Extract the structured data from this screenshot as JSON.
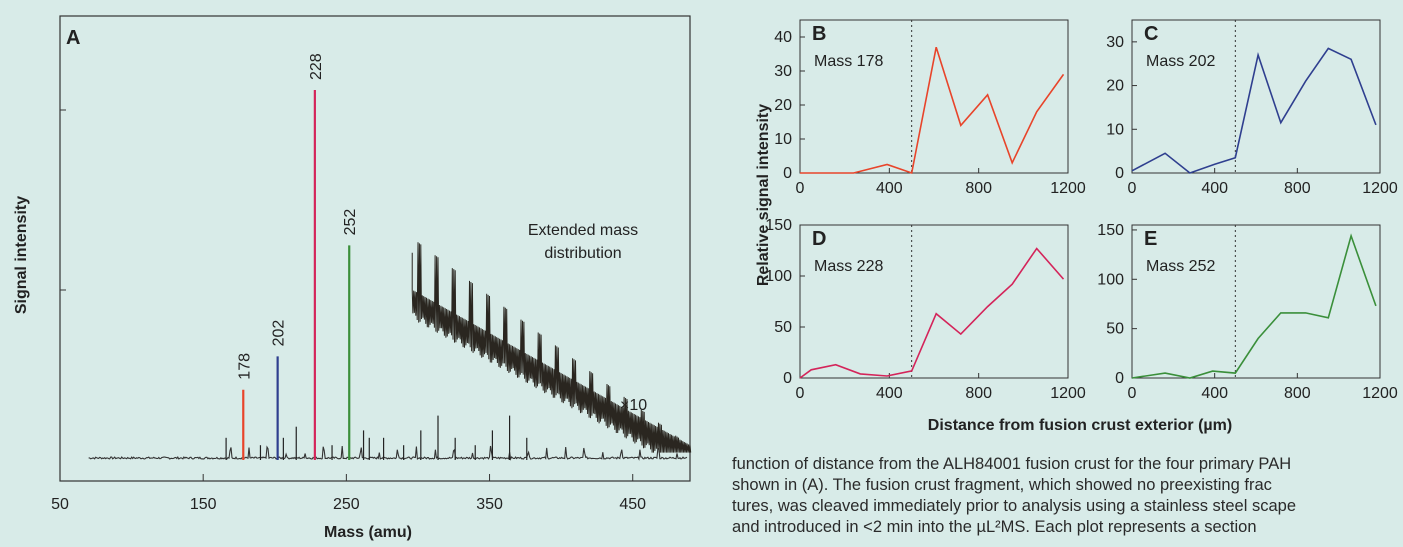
{
  "panel_a": {
    "letter": "A",
    "xlabel": "Mass (amu)",
    "ylabel": "Signal intensity",
    "extended_label_line1": "Extended mass",
    "extended_label_line2": "distribution",
    "times_label": "×10"
  },
  "shared": {
    "ylabel": "Relative signal intensity",
    "xlabel": "Distance from fusion crust exterior (µm)"
  },
  "caption_lines": [
    "function of distance from the ALH84001 fusion crust for the four primary PAH",
    "shown in (A). The fusion crust fragment, which showed no preexisting frac",
    "tures, was cleaved immediately prior to analysis using a stainless steel scape",
    "and introduced in <2 min into the µL²MS. Each plot represents a section"
  ],
  "chart_data": [
    {
      "type": "line",
      "panel": "A",
      "xlabel": "Mass (amu)",
      "ylabel": "Signal intensity",
      "xlim": [
        50,
        490
      ],
      "xticks": [
        50,
        150,
        250,
        350,
        450
      ],
      "peaks": [
        {
          "mass": 178,
          "label": "178",
          "height": 0.19,
          "color": "#e8442a"
        },
        {
          "mass": 202,
          "label": "202",
          "height": 0.28,
          "color": "#2f3f8f"
        },
        {
          "mass": 228,
          "label": "228",
          "height": 1.0,
          "color": "#d4245a"
        },
        {
          "mass": 252,
          "label": "252",
          "height": 0.58,
          "color": "#3a8f3a"
        }
      ],
      "annotations": [
        "Extended mass distribution",
        "×10"
      ]
    },
    {
      "type": "line",
      "panel": "B",
      "label": "Mass 178",
      "color": "#e8442a",
      "x": [
        0,
        120,
        240,
        390,
        500,
        610,
        720,
        840,
        950,
        1060,
        1180
      ],
      "y": [
        0,
        0,
        0,
        2.5,
        0,
        37,
        14,
        23,
        3,
        18,
        29
      ],
      "ylim": [
        0,
        45
      ],
      "yticks": [
        0,
        10,
        20,
        30,
        40
      ],
      "xlim": [
        0,
        1200
      ],
      "xticks": [
        0,
        400,
        800,
        1200
      ]
    },
    {
      "type": "line",
      "panel": "C",
      "label": "Mass 202",
      "color": "#2f3f8f",
      "x": [
        0,
        160,
        280,
        400,
        500,
        610,
        720,
        840,
        950,
        1060,
        1180
      ],
      "y": [
        0.5,
        4.5,
        0,
        2,
        3.5,
        27,
        11.5,
        21,
        28.5,
        26,
        11
      ],
      "ylim": [
        0,
        35
      ],
      "yticks": [
        0,
        10,
        20,
        30
      ],
      "xlim": [
        0,
        1200
      ],
      "xticks": [
        0,
        400,
        800,
        1200
      ]
    },
    {
      "type": "line",
      "panel": "D",
      "label": "Mass 228",
      "color": "#d4245a",
      "x": [
        0,
        50,
        160,
        270,
        390,
        500,
        610,
        720,
        840,
        950,
        1060,
        1180
      ],
      "y": [
        0,
        8,
        13,
        4,
        2,
        7,
        63,
        43,
        70,
        92,
        127,
        97
      ],
      "ylim": [
        0,
        150
      ],
      "yticks": [
        0,
        50,
        100,
        150
      ],
      "xlim": [
        0,
        1200
      ],
      "xticks": [
        0,
        400,
        800,
        1200
      ]
    },
    {
      "type": "line",
      "panel": "E",
      "label": "Mass 252",
      "color": "#3a8f3a",
      "x": [
        0,
        160,
        280,
        390,
        500,
        610,
        720,
        840,
        950,
        1060,
        1180
      ],
      "y": [
        0,
        5,
        0,
        7,
        5,
        40,
        66,
        66,
        61,
        144,
        73
      ],
      "ylim": [
        0,
        155
      ],
      "yticks": [
        0,
        50,
        100,
        150
      ],
      "xlim": [
        0,
        1200
      ],
      "xticks": [
        0,
        400,
        800,
        1200
      ]
    }
  ]
}
